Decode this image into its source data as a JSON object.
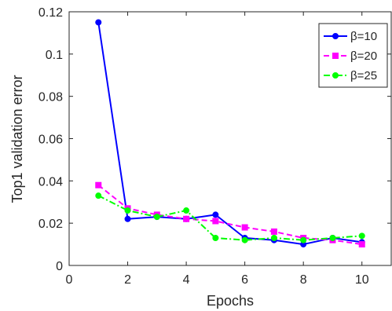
{
  "chart_data": {
    "type": "line",
    "xlabel": "Epochs",
    "ylabel": "Top1 validation error",
    "xlim": [
      0,
      11
    ],
    "ylim": [
      0,
      0.12
    ],
    "x_ticks": [
      0,
      2,
      4,
      6,
      8,
      10
    ],
    "y_ticks": [
      0,
      0.02,
      0.04,
      0.06,
      0.08,
      0.1,
      0.12
    ],
    "grid": false,
    "legend": {
      "placement": "top-right"
    },
    "x": [
      1,
      2,
      3,
      4,
      5,
      6,
      7,
      8,
      9,
      10
    ],
    "series": [
      {
        "name": "β=10",
        "color": "#0000ff",
        "line_style": "solid",
        "marker": "circle",
        "values": [
          0.115,
          0.022,
          0.023,
          0.022,
          0.024,
          0.013,
          0.012,
          0.01,
          0.013,
          0.011
        ]
      },
      {
        "name": "β=20",
        "color": "#ff00ff",
        "line_style": "dashed",
        "marker": "square",
        "values": [
          0.038,
          0.027,
          0.024,
          0.022,
          0.021,
          0.018,
          0.016,
          0.013,
          0.012,
          0.01
        ]
      },
      {
        "name": "β=25",
        "color": "#00ff00",
        "line_style": "dashdot",
        "marker": "circle",
        "values": [
          0.033,
          0.026,
          0.023,
          0.026,
          0.013,
          0.012,
          0.013,
          0.012,
          0.013,
          0.014
        ]
      }
    ]
  }
}
